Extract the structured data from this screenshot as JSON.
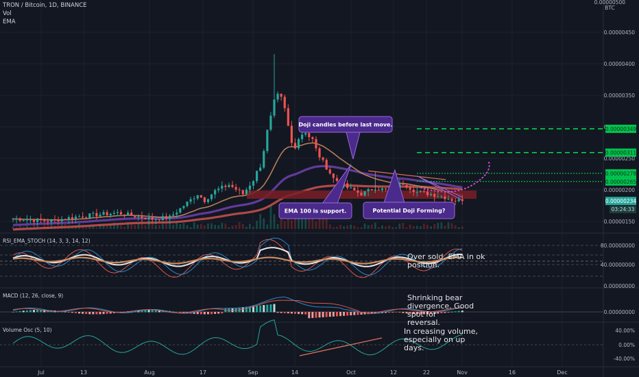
{
  "header": {
    "symbol": "TRON / Bitcoin, 1D, BINANCE",
    "vol_label": "Vol",
    "ema_label": "EMA",
    "top_tick": "0.00000500",
    "currency": "BTC"
  },
  "colors": {
    "background": "#131722",
    "grid": "#1e222d",
    "candle_up": "#26a69a",
    "candle_down": "#ef5350",
    "ema_short": "#c98a5e",
    "ema_mid": "#6a3fa6",
    "ema_long": "#c0504d",
    "callout": "#4a2a8a",
    "callout_border": "#9b6ae0",
    "level_line": "#00e64d",
    "projection": "#d04ac8",
    "trend_line": "#e0735a"
  },
  "price_axis": {
    "ticks": [
      "0.00000450",
      "0.00000400",
      "0.00000350",
      "0.00000300",
      "0.00000250",
      "0.00000200",
      "0.00000150"
    ],
    "level_badges": [
      "0.00000349",
      "0.00000311",
      "0.00000278",
      "0.00000265"
    ],
    "last_price": "0.00000234",
    "countdown": "03:24:33"
  },
  "time_axis": {
    "labels": [
      "Jul",
      "13",
      "Aug",
      "17",
      "Sep",
      "14",
      "Oct",
      "12",
      "22",
      "Nov",
      "16",
      "Dec"
    ]
  },
  "annotations": {
    "doji_before": "Doji candles before last move.",
    "ema100_support": "EMA 100 is support.",
    "doji_forming": "Potential Doji Forming?",
    "rsi_note": "Over sold, EMA in ok position.",
    "macd_note": "Shrinking bear divergence. Good spot for reversal.",
    "volosc_note": "In creasing volume, especially on up days."
  },
  "panels": {
    "rsi": {
      "title": "RSI_EMA_STOCH (14, 3, 3, 14, 12)",
      "ticks": [
        "80.00000000",
        "40.00000000",
        "0.00000000"
      ]
    },
    "macd": {
      "title": "MACD (12, 26, close, 9)",
      "ticks": [
        "0.00000000"
      ]
    },
    "volosc": {
      "title": "Volume Osc (5, 10)",
      "ticks": [
        "40.00%",
        "0.00%",
        "-40.00%"
      ]
    }
  },
  "chart_data": {
    "type": "candlestick",
    "title": "TRON / Bitcoin, 1D, BINANCE",
    "y_unit": "BTC",
    "ylim": [
      1.4e-06,
      5e-06
    ],
    "x_range": [
      "Jun 25",
      "Dec 15"
    ],
    "horizontal_levels": [
      3.49e-06,
      3.11e-06,
      2.78e-06,
      2.65e-06
    ],
    "last_price": 2.34e-06,
    "ohlc_keypoints": [
      {
        "date": "Jul",
        "close": 2.03e-06
      },
      {
        "date": "Aug 17",
        "close": 2.6e-06
      },
      {
        "date": "Sep 1",
        "high": 4.68e-06,
        "close": 4e-06
      },
      {
        "date": "Sep 14",
        "close": 2.52e-06
      },
      {
        "date": "Oct 12",
        "close": 2.34e-06
      }
    ],
    "grid": true
  }
}
